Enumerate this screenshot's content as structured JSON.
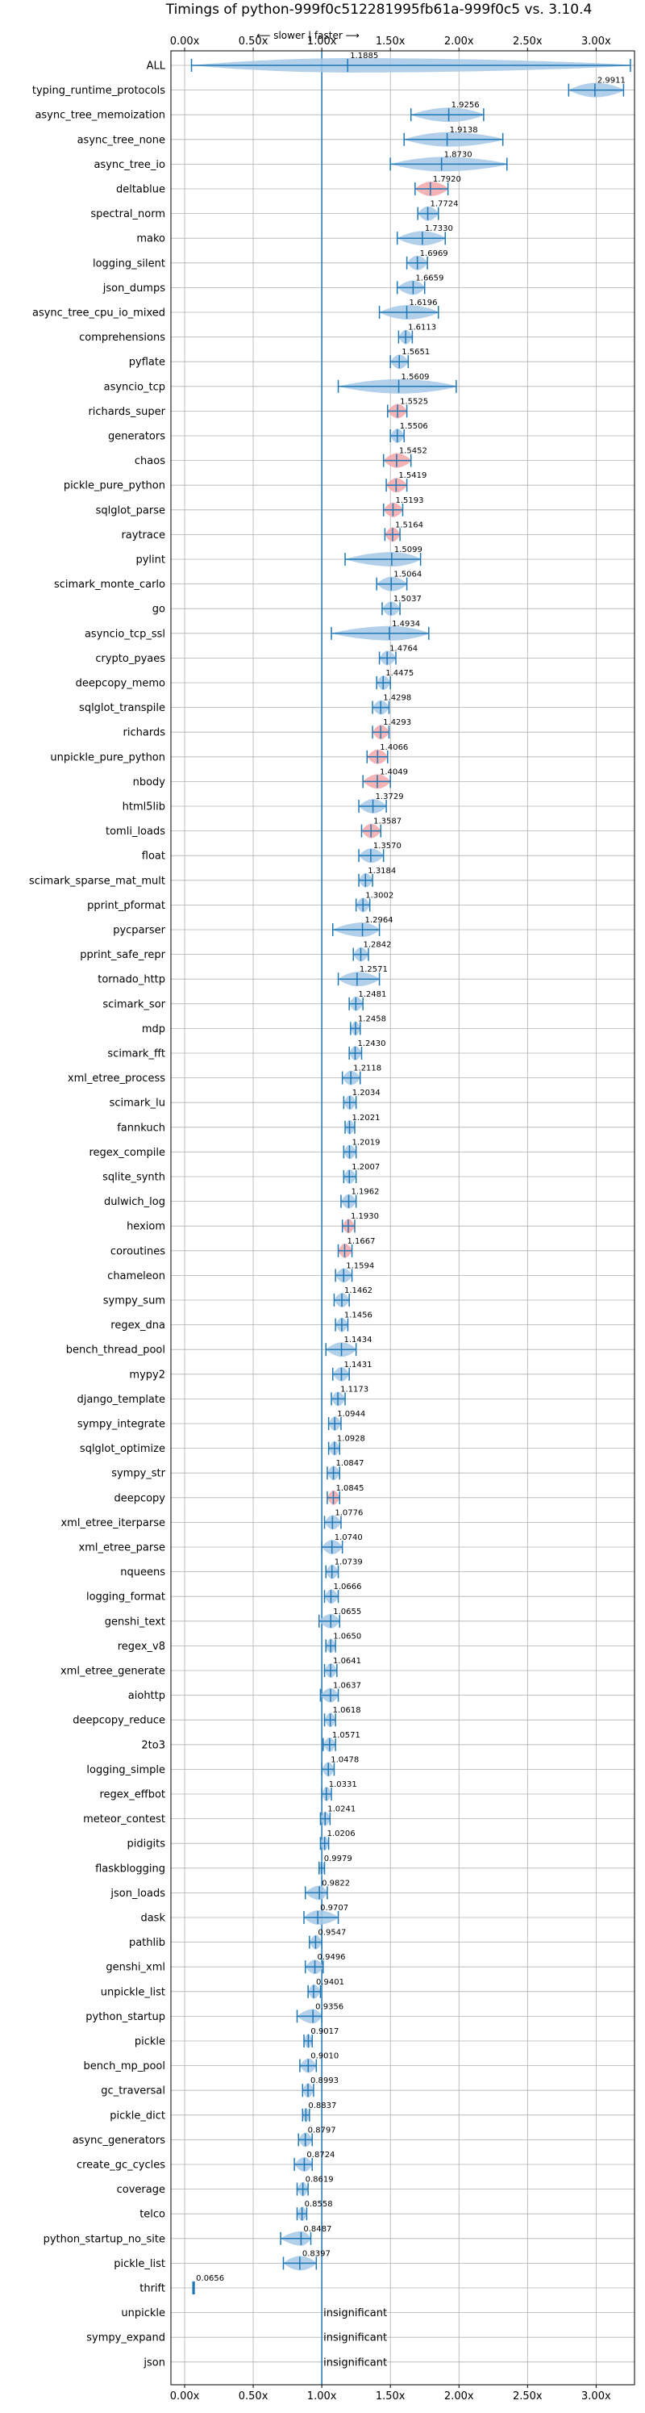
{
  "chart_data": {
    "type": "violin",
    "title": "Timings of python-999f0c512281995fb61a-999f0c5 vs. 3.10.4",
    "direction_label": "⟵ slower | faster ⟶",
    "xlim": [
      -0.1,
      3.28
    ],
    "xticks": [
      0.0,
      0.5,
      1.0,
      1.5,
      2.0,
      2.5,
      3.0
    ],
    "xtick_labels": [
      "0.00x",
      "0.50x",
      "1.00x",
      "1.50x",
      "2.00x",
      "2.50x",
      "3.00x"
    ],
    "reference_x": 1.0,
    "grid": true,
    "colors": {
      "violin_normal": "#a6c8e6",
      "violin_highlight": "#f4a6a8",
      "whisker": "#1f77b4",
      "grid": "#b0b0b0",
      "reference": "#1f77b4"
    },
    "insignificant_text": "insignificant",
    "benchmarks": [
      {
        "name": "ALL",
        "value": 1.1885,
        "label": "1.1885",
        "min": 0.05,
        "max": 3.25,
        "spread": 0.5
      },
      {
        "name": "typing_runtime_protocols",
        "value": 2.9911,
        "label": "2.9911",
        "min": 2.8,
        "max": 3.2,
        "spread": 0.2
      },
      {
        "name": "async_tree_memoization",
        "value": 1.9256,
        "label": "1.9256",
        "min": 1.65,
        "max": 2.18,
        "spread": 0.3
      },
      {
        "name": "async_tree_none",
        "value": 1.9138,
        "label": "1.9138",
        "min": 1.6,
        "max": 2.32,
        "spread": 0.35
      },
      {
        "name": "async_tree_io",
        "value": 1.873,
        "label": "1.8730",
        "min": 1.5,
        "max": 2.35,
        "spread": 0.35
      },
      {
        "name": "deltablue",
        "value": 1.792,
        "label": "1.7920",
        "min": 1.68,
        "max": 1.92,
        "spread": 0.1,
        "highlight": true
      },
      {
        "name": "spectral_norm",
        "value": 1.7724,
        "label": "1.7724",
        "min": 1.7,
        "max": 1.85,
        "spread": 0.08
      },
      {
        "name": "mako",
        "value": 1.733,
        "label": "1.7330",
        "min": 1.55,
        "max": 1.9,
        "spread": 0.15
      },
      {
        "name": "logging_silent",
        "value": 1.6969,
        "label": "1.6969",
        "min": 1.62,
        "max": 1.77,
        "spread": 0.08
      },
      {
        "name": "json_dumps",
        "value": 1.6659,
        "label": "1.6659",
        "min": 1.55,
        "max": 1.75,
        "spread": 0.08
      },
      {
        "name": "async_tree_cpu_io_mixed",
        "value": 1.6196,
        "label": "1.6196",
        "min": 1.42,
        "max": 1.85,
        "spread": 0.2
      },
      {
        "name": "comprehensions",
        "value": 1.6113,
        "label": "1.6113",
        "min": 1.56,
        "max": 1.66,
        "spread": 0.05
      },
      {
        "name": "pyflate",
        "value": 1.5651,
        "label": "1.5651",
        "min": 1.5,
        "max": 1.63,
        "spread": 0.06
      },
      {
        "name": "asyncio_tcp",
        "value": 1.5609,
        "label": "1.5609",
        "min": 1.12,
        "max": 1.98,
        "spread": 0.35
      },
      {
        "name": "richards_super",
        "value": 1.5525,
        "label": "1.5525",
        "min": 1.48,
        "max": 1.62,
        "spread": 0.06,
        "highlight": true
      },
      {
        "name": "generators",
        "value": 1.5506,
        "label": "1.5506",
        "min": 1.5,
        "max": 1.6,
        "spread": 0.05
      },
      {
        "name": "chaos",
        "value": 1.5452,
        "label": "1.5452",
        "min": 1.45,
        "max": 1.65,
        "spread": 0.1,
        "highlight": true
      },
      {
        "name": "pickle_pure_python",
        "value": 1.5419,
        "label": "1.5419",
        "min": 1.47,
        "max": 1.62,
        "spread": 0.06,
        "highlight": true
      },
      {
        "name": "sqlglot_parse",
        "value": 1.5193,
        "label": "1.5193",
        "min": 1.45,
        "max": 1.59,
        "spread": 0.06,
        "highlight": true
      },
      {
        "name": "raytrace",
        "value": 1.5164,
        "label": "1.5164",
        "min": 1.46,
        "max": 1.57,
        "spread": 0.05,
        "highlight": true
      },
      {
        "name": "pylint",
        "value": 1.5099,
        "label": "1.5099",
        "min": 1.17,
        "max": 1.72,
        "spread": 0.12
      },
      {
        "name": "scimark_monte_carlo",
        "value": 1.5064,
        "label": "1.5064",
        "min": 1.4,
        "max": 1.62,
        "spread": 0.08
      },
      {
        "name": "go",
        "value": 1.5037,
        "label": "1.5037",
        "min": 1.44,
        "max": 1.57,
        "spread": 0.05
      },
      {
        "name": "asyncio_tcp_ssl",
        "value": 1.4934,
        "label": "1.4934",
        "min": 1.07,
        "max": 1.78,
        "spread": 0.3
      },
      {
        "name": "crypto_pyaes",
        "value": 1.4764,
        "label": "1.4764",
        "min": 1.42,
        "max": 1.54,
        "spread": 0.06
      },
      {
        "name": "deepcopy_memo",
        "value": 1.4475,
        "label": "1.4475",
        "min": 1.4,
        "max": 1.5,
        "spread": 0.05
      },
      {
        "name": "sqlglot_transpile",
        "value": 1.4298,
        "label": "1.4298",
        "min": 1.37,
        "max": 1.49,
        "spread": 0.05
      },
      {
        "name": "richards",
        "value": 1.4293,
        "label": "1.4293",
        "min": 1.37,
        "max": 1.49,
        "spread": 0.06,
        "highlight": true
      },
      {
        "name": "unpickle_pure_python",
        "value": 1.4066,
        "label": "1.4066",
        "min": 1.33,
        "max": 1.48,
        "spread": 0.06,
        "highlight": true
      },
      {
        "name": "nbody",
        "value": 1.4049,
        "label": "1.4049",
        "min": 1.3,
        "max": 1.5,
        "spread": 0.06,
        "highlight": true
      },
      {
        "name": "html5lib",
        "value": 1.3729,
        "label": "1.3729",
        "min": 1.27,
        "max": 1.47,
        "spread": 0.08
      },
      {
        "name": "tomli_loads",
        "value": 1.3587,
        "label": "1.3587",
        "min": 1.29,
        "max": 1.43,
        "spread": 0.06,
        "highlight": true
      },
      {
        "name": "float",
        "value": 1.357,
        "label": "1.3570",
        "min": 1.27,
        "max": 1.45,
        "spread": 0.08
      },
      {
        "name": "scimark_sparse_mat_mult",
        "value": 1.3184,
        "label": "1.3184",
        "min": 1.27,
        "max": 1.37,
        "spread": 0.05
      },
      {
        "name": "pprint_pformat",
        "value": 1.3002,
        "label": "1.3002",
        "min": 1.25,
        "max": 1.35,
        "spread": 0.05
      },
      {
        "name": "pycparser",
        "value": 1.2964,
        "label": "1.2964",
        "min": 1.08,
        "max": 1.42,
        "spread": 0.12
      },
      {
        "name": "pprint_safe_repr",
        "value": 1.2842,
        "label": "1.2842",
        "min": 1.23,
        "max": 1.34,
        "spread": 0.05
      },
      {
        "name": "tornado_http",
        "value": 1.2571,
        "label": "1.2571",
        "min": 1.12,
        "max": 1.42,
        "spread": 0.1
      },
      {
        "name": "scimark_sor",
        "value": 1.2481,
        "label": "1.2481",
        "min": 1.2,
        "max": 1.3,
        "spread": 0.05
      },
      {
        "name": "mdp",
        "value": 1.2458,
        "label": "1.2458",
        "min": 1.21,
        "max": 1.28,
        "spread": 0.04
      },
      {
        "name": "scimark_fft",
        "value": 1.243,
        "label": "1.2430",
        "min": 1.2,
        "max": 1.29,
        "spread": 0.04
      },
      {
        "name": "xml_etree_process",
        "value": 1.2118,
        "label": "1.2118",
        "min": 1.15,
        "max": 1.28,
        "spread": 0.06
      },
      {
        "name": "scimark_lu",
        "value": 1.2034,
        "label": "1.2034",
        "min": 1.16,
        "max": 1.25,
        "spread": 0.04
      },
      {
        "name": "fannkuch",
        "value": 1.2021,
        "label": "1.2021",
        "min": 1.17,
        "max": 1.24,
        "spread": 0.04
      },
      {
        "name": "regex_compile",
        "value": 1.2019,
        "label": "1.2019",
        "min": 1.16,
        "max": 1.25,
        "spread": 0.04
      },
      {
        "name": "sqlite_synth",
        "value": 1.2007,
        "label": "1.2007",
        "min": 1.16,
        "max": 1.25,
        "spread": 0.04
      },
      {
        "name": "dulwich_log",
        "value": 1.1962,
        "label": "1.1962",
        "min": 1.14,
        "max": 1.25,
        "spread": 0.05
      },
      {
        "name": "hexiom",
        "value": 1.193,
        "label": "1.1930",
        "min": 1.15,
        "max": 1.24,
        "spread": 0.04,
        "highlight": true
      },
      {
        "name": "coroutines",
        "value": 1.1667,
        "label": "1.1667",
        "min": 1.12,
        "max": 1.22,
        "spread": 0.05,
        "highlight": true
      },
      {
        "name": "chameleon",
        "value": 1.1594,
        "label": "1.1594",
        "min": 1.1,
        "max": 1.22,
        "spread": 0.06
      },
      {
        "name": "sympy_sum",
        "value": 1.1462,
        "label": "1.1462",
        "min": 1.09,
        "max": 1.2,
        "spread": 0.05
      },
      {
        "name": "regex_dna",
        "value": 1.1456,
        "label": "1.1456",
        "min": 1.1,
        "max": 1.19,
        "spread": 0.04
      },
      {
        "name": "bench_thread_pool",
        "value": 1.1434,
        "label": "1.1434",
        "min": 1.03,
        "max": 1.25,
        "spread": 0.08
      },
      {
        "name": "mypy2",
        "value": 1.1431,
        "label": "1.1431",
        "min": 1.08,
        "max": 1.2,
        "spread": 0.05
      },
      {
        "name": "django_template",
        "value": 1.1173,
        "label": "1.1173",
        "min": 1.07,
        "max": 1.17,
        "spread": 0.04
      },
      {
        "name": "sympy_integrate",
        "value": 1.0944,
        "label": "1.0944",
        "min": 1.05,
        "max": 1.14,
        "spread": 0.04
      },
      {
        "name": "sqlglot_optimize",
        "value": 1.0928,
        "label": "1.0928",
        "min": 1.05,
        "max": 1.13,
        "spread": 0.04
      },
      {
        "name": "sympy_str",
        "value": 1.0847,
        "label": "1.0847",
        "min": 1.04,
        "max": 1.13,
        "spread": 0.04
      },
      {
        "name": "deepcopy",
        "value": 1.0845,
        "label": "1.0845",
        "min": 1.04,
        "max": 1.13,
        "spread": 0.04,
        "highlight": true
      },
      {
        "name": "xml_etree_iterparse",
        "value": 1.0776,
        "label": "1.0776",
        "min": 1.02,
        "max": 1.14,
        "spread": 0.05
      },
      {
        "name": "xml_etree_parse",
        "value": 1.074,
        "label": "1.0740",
        "min": 1.0,
        "max": 1.15,
        "spread": 0.05
      },
      {
        "name": "nqueens",
        "value": 1.0739,
        "label": "1.0739",
        "min": 1.03,
        "max": 1.12,
        "spread": 0.04
      },
      {
        "name": "logging_format",
        "value": 1.0666,
        "label": "1.0666",
        "min": 1.02,
        "max": 1.12,
        "spread": 0.05
      },
      {
        "name": "genshi_text",
        "value": 1.0655,
        "label": "1.0655",
        "min": 0.98,
        "max": 1.13,
        "spread": 0.06
      },
      {
        "name": "regex_v8",
        "value": 1.065,
        "label": "1.0650",
        "min": 1.03,
        "max": 1.1,
        "spread": 0.03
      },
      {
        "name": "xml_etree_generate",
        "value": 1.0641,
        "label": "1.0641",
        "min": 1.02,
        "max": 1.11,
        "spread": 0.04
      },
      {
        "name": "aiohttp",
        "value": 1.0637,
        "label": "1.0637",
        "min": 0.99,
        "max": 1.12,
        "spread": 0.05
      },
      {
        "name": "deepcopy_reduce",
        "value": 1.0618,
        "label": "1.0618",
        "min": 1.02,
        "max": 1.1,
        "spread": 0.04
      },
      {
        "name": "2to3",
        "value": 1.0571,
        "label": "1.0571",
        "min": 1.01,
        "max": 1.1,
        "spread": 0.04
      },
      {
        "name": "logging_simple",
        "value": 1.0478,
        "label": "1.0478",
        "min": 1.0,
        "max": 1.09,
        "spread": 0.04
      },
      {
        "name": "regex_effbot",
        "value": 1.0331,
        "label": "1.0331",
        "min": 1.0,
        "max": 1.07,
        "spread": 0.03
      },
      {
        "name": "meteor_contest",
        "value": 1.0241,
        "label": "1.0241",
        "min": 0.99,
        "max": 1.06,
        "spread": 0.03
      },
      {
        "name": "pidigits",
        "value": 1.0206,
        "label": "1.0206",
        "min": 0.99,
        "max": 1.05,
        "spread": 0.03
      },
      {
        "name": "flaskblogging",
        "value": 0.9979,
        "label": "0.9979",
        "min": 0.98,
        "max": 1.02,
        "spread": 0.02
      },
      {
        "name": "json_loads",
        "value": 0.9822,
        "label": "0.9822",
        "min": 0.88,
        "max": 1.04,
        "spread": 0.05
      },
      {
        "name": "dask",
        "value": 0.9707,
        "label": "0.9707",
        "min": 0.87,
        "max": 1.12,
        "spread": 0.08
      },
      {
        "name": "pathlib",
        "value": 0.9547,
        "label": "0.9547",
        "min": 0.91,
        "max": 1.0,
        "spread": 0.04
      },
      {
        "name": "genshi_xml",
        "value": 0.9496,
        "label": "0.9496",
        "min": 0.88,
        "max": 1.01,
        "spread": 0.05
      },
      {
        "name": "unpickle_list",
        "value": 0.9401,
        "label": "0.9401",
        "min": 0.9,
        "max": 0.99,
        "spread": 0.04
      },
      {
        "name": "python_startup",
        "value": 0.9356,
        "label": "0.9356",
        "min": 0.82,
        "max": 1.0,
        "spread": 0.08
      },
      {
        "name": "pickle",
        "value": 0.9017,
        "label": "0.9017",
        "min": 0.87,
        "max": 0.93,
        "spread": 0.03
      },
      {
        "name": "bench_mp_pool",
        "value": 0.901,
        "label": "0.9010",
        "min": 0.84,
        "max": 0.96,
        "spread": 0.05
      },
      {
        "name": "gc_traversal",
        "value": 0.8993,
        "label": "0.8993",
        "min": 0.86,
        "max": 0.94,
        "spread": 0.04
      },
      {
        "name": "pickle_dict",
        "value": 0.8837,
        "label": "0.8837",
        "min": 0.86,
        "max": 0.91,
        "spread": 0.03
      },
      {
        "name": "async_generators",
        "value": 0.8797,
        "label": "0.8797",
        "min": 0.83,
        "max": 0.93,
        "spread": 0.04
      },
      {
        "name": "create_gc_cycles",
        "value": 0.8724,
        "label": "0.8724",
        "min": 0.8,
        "max": 0.93,
        "spread": 0.05
      },
      {
        "name": "coverage",
        "value": 0.8619,
        "label": "0.8619",
        "min": 0.82,
        "max": 0.9,
        "spread": 0.03
      },
      {
        "name": "telco",
        "value": 0.8558,
        "label": "0.8558",
        "min": 0.82,
        "max": 0.89,
        "spread": 0.03
      },
      {
        "name": "python_startup_no_site",
        "value": 0.8487,
        "label": "0.8487",
        "min": 0.7,
        "max": 0.92,
        "spread": 0.08
      },
      {
        "name": "pickle_list",
        "value": 0.8397,
        "label": "0.8397",
        "min": 0.72,
        "max": 0.96,
        "spread": 0.08
      },
      {
        "name": "thrift",
        "value": 0.0656,
        "label": "0.0656",
        "min": 0.06,
        "max": 0.07,
        "spread": 0.01,
        "thin": true
      },
      {
        "name": "unpickle",
        "insignificant": true
      },
      {
        "name": "sympy_expand",
        "insignificant": true
      },
      {
        "name": "json",
        "insignificant": true
      }
    ]
  }
}
